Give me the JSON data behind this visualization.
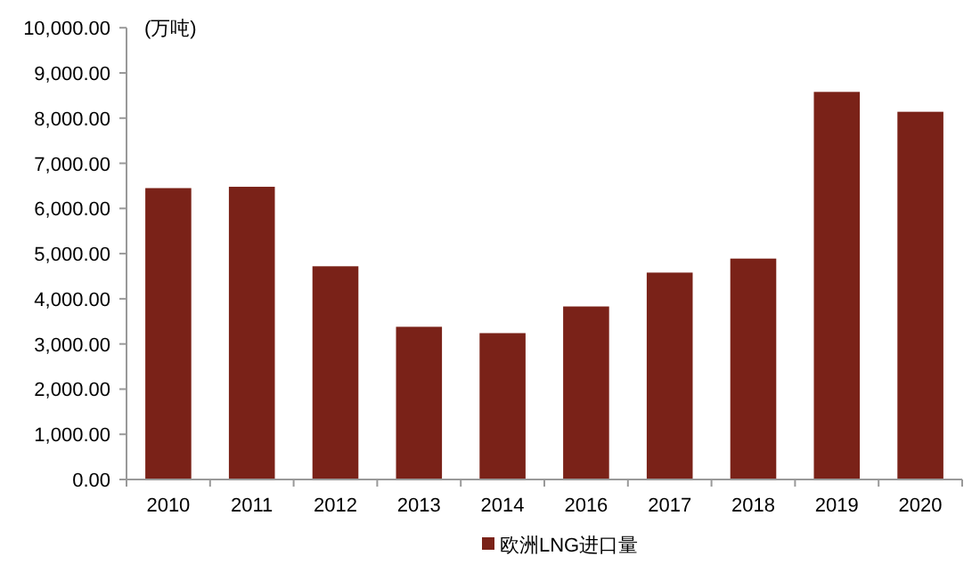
{
  "chart_data": {
    "type": "bar",
    "ylabel": "(万吨)",
    "categories": [
      "2010",
      "2011",
      "2012",
      "2013",
      "2014",
      "2016",
      "2017",
      "2018",
      "2019",
      "2020"
    ],
    "series": [
      {
        "name": "欧洲LNG进口量",
        "color": "#7a2218",
        "values": [
          6450,
          6480,
          4720,
          3380,
          3240,
          3830,
          4580,
          4890,
          8580,
          8140
        ]
      }
    ],
    "ylim": [
      0,
      10000
    ],
    "yticks": [
      {
        "value": 0,
        "label": "0.00"
      },
      {
        "value": 1000,
        "label": "1,000.00"
      },
      {
        "value": 2000,
        "label": "2,000.00"
      },
      {
        "value": 3000,
        "label": "3,000.00"
      },
      {
        "value": 4000,
        "label": "4,000.00"
      },
      {
        "value": 5000,
        "label": "5,000.00"
      },
      {
        "value": 6000,
        "label": "6,000.00"
      },
      {
        "value": 7000,
        "label": "7,000.00"
      },
      {
        "value": 8000,
        "label": "8,000.00"
      },
      {
        "value": 9000,
        "label": "9,000.00"
      },
      {
        "value": 10000,
        "label": "10,000.00"
      }
    ],
    "legend": "bottom"
  }
}
